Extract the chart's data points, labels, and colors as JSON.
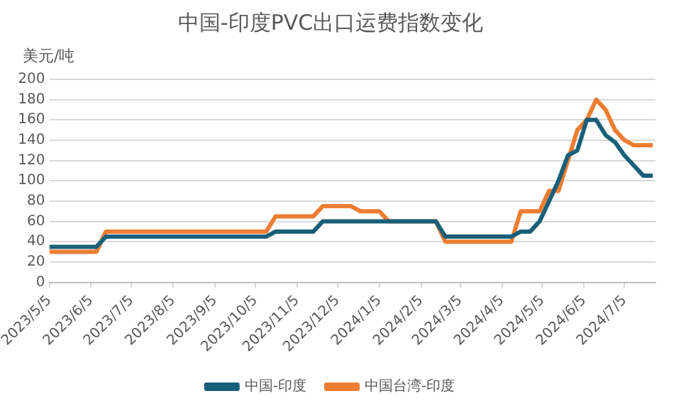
{
  "chart_data": {
    "type": "line",
    "title": "中国-印度PVC出口运费指数变化",
    "ylabel": "美元/吨",
    "xlim": [
      "2023-05-05",
      "2024-07-28"
    ],
    "xticks": [
      {
        "value": "2023-05-05",
        "label": "2023/5/5"
      },
      {
        "value": "2023-06-05",
        "label": "2023/6/5"
      },
      {
        "value": "2023-07-05",
        "label": "2023/7/5"
      },
      {
        "value": "2023-08-05",
        "label": "2023/8/5"
      },
      {
        "value": "2023-09-05",
        "label": "2023/9/5"
      },
      {
        "value": "2023-10-05",
        "label": "2023/10/5"
      },
      {
        "value": "2023-11-05",
        "label": "2023/11/5"
      },
      {
        "value": "2023-12-05",
        "label": "2023/12/5"
      },
      {
        "value": "2024-01-05",
        "label": "2024/1/5"
      },
      {
        "value": "2024-02-05",
        "label": "2024/2/5"
      },
      {
        "value": "2024-03-05",
        "label": "2024/3/5"
      },
      {
        "value": "2024-04-05",
        "label": "2024/4/5"
      },
      {
        "value": "2024-05-05",
        "label": "2024/5/5"
      },
      {
        "value": "2024-06-05",
        "label": "2024/6/5"
      },
      {
        "value": "2024-07-05",
        "label": "2024/7/5"
      }
    ],
    "ylim": [
      0,
      200
    ],
    "yticks": [
      0,
      20,
      40,
      60,
      80,
      100,
      120,
      140,
      160,
      180,
      200
    ],
    "grid": "y",
    "legend": "bottom",
    "marker": "none",
    "line_style": "solid",
    "series": [
      {
        "name": "中国-印度",
        "color": "#1a5f7a",
        "x": [
          "2023-05-05",
          "2023-06-09",
          "2023-06-16",
          "2023-10-13",
          "2023-10-20",
          "2023-11-17",
          "2023-11-24",
          "2024-02-16",
          "2024-02-23",
          "2024-04-12",
          "2024-04-19",
          "2024-04-26",
          "2024-05-03",
          "2024-05-10",
          "2024-05-17",
          "2024-05-24",
          "2024-05-31",
          "2024-06-07",
          "2024-06-14",
          "2024-06-21",
          "2024-06-28",
          "2024-07-05",
          "2024-07-12",
          "2024-07-19",
          "2024-07-26"
        ],
        "values": [
          35,
          35,
          45,
          45,
          50,
          50,
          60,
          60,
          45,
          45,
          50,
          50,
          60,
          80,
          100,
          125,
          130,
          160,
          160,
          145,
          138,
          125,
          115,
          105,
          105
        ]
      },
      {
        "name": "中国台湾-印度",
        "color": "#ed7d31",
        "x": [
          "2023-05-05",
          "2023-06-09",
          "2023-06-16",
          "2023-10-13",
          "2023-10-20",
          "2023-11-17",
          "2023-11-24",
          "2023-12-15",
          "2023-12-22",
          "2024-01-05",
          "2024-01-12",
          "2024-02-16",
          "2024-02-23",
          "2024-04-12",
          "2024-04-19",
          "2024-05-03",
          "2024-05-10",
          "2024-05-17",
          "2024-05-24",
          "2024-05-31",
          "2024-06-07",
          "2024-06-14",
          "2024-06-21",
          "2024-06-28",
          "2024-07-05",
          "2024-07-12",
          "2024-07-19",
          "2024-07-26"
        ],
        "values": [
          30,
          30,
          50,
          50,
          65,
          65,
          75,
          75,
          70,
          70,
          60,
          60,
          40,
          40,
          70,
          70,
          90,
          90,
          120,
          150,
          160,
          180,
          170,
          150,
          140,
          135,
          135,
          135
        ]
      }
    ]
  }
}
